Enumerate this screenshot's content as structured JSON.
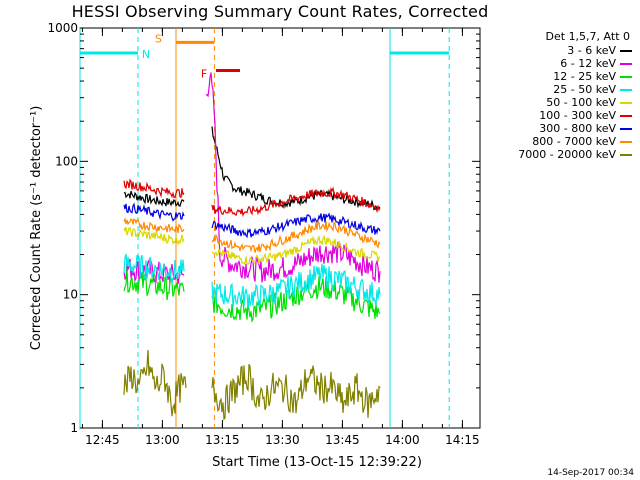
{
  "title": "HESSI Observing Summary Count Rates, Corrected",
  "footer": "14-Sep-2017 00:34",
  "chart_data": {
    "type": "line",
    "title": "HESSI Observing Summary Count Rates, Corrected",
    "xlabel": "Start Time (13-Oct-15 12:39:22)",
    "ylabel": "Corrected Count Rate (s⁻¹ detector⁻¹)",
    "x_unit": "minutes since 12:39:22",
    "xlim": [
      0,
      100
    ],
    "ylim": [
      1,
      1000
    ],
    "yscale": "log",
    "x_ticks": [
      {
        "label": "12:45",
        "t": 5.6
      },
      {
        "label": "13:00",
        "t": 20.6
      },
      {
        "label": "13:15",
        "t": 35.6
      },
      {
        "label": "13:30",
        "t": 50.6
      },
      {
        "label": "13:45",
        "t": 65.6
      },
      {
        "label": "14:00",
        "t": 80.6
      },
      {
        "label": "14:15",
        "t": 95.6
      }
    ],
    "y_ticks": [
      {
        "label": "1",
        "v": 1
      },
      {
        "label": "10",
        "v": 10
      },
      {
        "label": "100",
        "v": 100
      },
      {
        "label": "1000",
        "v": 1000
      }
    ],
    "legend": {
      "position": "top-right",
      "header": "Det 1,5,7, Att 0"
    },
    "series": [
      {
        "name": "3 - 6 keV",
        "color": "#000000",
        "segments": [
          {
            "x": [
              11.0,
              14.0,
              17.0,
              20.0,
              23.0,
              26.0
            ],
            "y": [
              58,
              55,
              52,
              50,
              49,
              50
            ]
          },
          {
            "x": [
              33.0,
              36.0,
              39.0,
              42.0,
              45.0,
              48.0,
              51.0,
              54.0,
              57.0,
              60.0,
              63.0,
              66.0,
              69.0,
              72.0,
              75.0
            ],
            "y": [
              170,
              75,
              62,
              58,
              54,
              50,
              49,
              50,
              54,
              56,
              55,
              52,
              50,
              48,
              45
            ]
          }
        ]
      },
      {
        "name": "6 - 12 keV",
        "color": "#e000e0",
        "segments": [
          {
            "x": [
              11.0,
              14.0,
              17.0,
              20.0,
              23.0,
              26.0
            ],
            "y": [
              16,
              15.5,
              15,
              14.5,
              14,
              14
            ]
          },
          {
            "x": [
              31.5,
              32.5,
              33.5,
              35.0,
              38.0,
              42.0,
              45.0,
              48.0,
              51.0,
              54.0,
              57.0,
              60.0,
              63.0,
              66.0,
              69.0,
              72.0,
              75.0
            ],
            "y": [
              300,
              450,
              250,
              20,
              17,
              16,
              15,
              15.5,
              16,
              17,
              19,
              21,
              21,
              20,
              18,
              16,
              15
            ]
          }
        ]
      },
      {
        "name": "12 - 25 keV",
        "color": "#00e000",
        "segments": [
          {
            "x": [
              11.0,
              14.0,
              17.0,
              20.0,
              23.0,
              26.0
            ],
            "y": [
              13,
              12.5,
              12,
              11.5,
              11,
              10.5
            ]
          },
          {
            "x": [
              33.0,
              36.0,
              39.0,
              42.0,
              45.0,
              48.0,
              51.0,
              54.0,
              57.0,
              60.0,
              63.0,
              66.0,
              69.0,
              72.0,
              75.0
            ],
            "y": [
              9,
              8,
              7.8,
              7.5,
              7.8,
              8.2,
              9,
              10,
              11,
              11.5,
              11,
              10,
              9,
              8,
              7.2
            ]
          }
        ]
      },
      {
        "name": "25 - 50 keV",
        "color": "#00e8e8",
        "segments": [
          {
            "x": [
              11.0,
              14.0,
              17.0,
              20.0,
              23.0,
              26.0
            ],
            "y": [
              17,
              16.5,
              16,
              15.5,
              15,
              15
            ]
          },
          {
            "x": [
              33.0,
              36.0,
              39.0,
              42.0,
              45.0,
              48.0,
              51.0,
              54.0,
              57.0,
              60.0,
              63.0,
              66.0,
              69.0,
              72.0,
              75.0
            ],
            "y": [
              10.5,
              10,
              9.8,
              9.6,
              9.8,
              10.2,
              11,
              12,
              13,
              14,
              13.5,
              12.5,
              11.5,
              10.5,
              10
            ]
          }
        ]
      },
      {
        "name": "50 - 100 keV",
        "color": "#d8d800",
        "segments": [
          {
            "x": [
              11.0,
              14.0,
              17.0,
              20.0,
              23.0,
              26.0
            ],
            "y": [
              30,
              29,
              28,
              27,
              26,
              26
            ]
          },
          {
            "x": [
              33.0,
              36.0,
              39.0,
              42.0,
              45.0,
              48.0,
              51.0,
              54.0,
              57.0,
              60.0,
              63.0,
              66.0,
              69.0,
              72.0,
              75.0
            ],
            "y": [
              22,
              20,
              19,
              18,
              18.5,
              19,
              20,
              22,
              24,
              26,
              25,
              23,
              21,
              20,
              19
            ]
          }
        ]
      },
      {
        "name": "100 - 300 keV",
        "color": "#e00000",
        "segments": [
          {
            "x": [
              11.0,
              14.0,
              17.0,
              20.0,
              23.0,
              26.0
            ],
            "y": [
              68,
              66,
              63,
              60,
              58,
              58
            ]
          },
          {
            "x": [
              33.0,
              36.0,
              39.0,
              42.0,
              45.0,
              48.0,
              51.0,
              54.0,
              57.0,
              60.0,
              63.0,
              66.0,
              69.0,
              72.0,
              75.0
            ],
            "y": [
              44,
              43,
              42,
              42,
              44,
              47,
              50,
              53,
              56,
              58,
              58,
              56,
              52,
              48,
              45
            ]
          }
        ]
      },
      {
        "name": "300 - 800 keV",
        "color": "#0000e0",
        "segments": [
          {
            "x": [
              11.0,
              14.0,
              17.0,
              20.0,
              23.0,
              26.0
            ],
            "y": [
              45,
              44,
              42,
              40,
              39,
              39
            ]
          },
          {
            "x": [
              33.0,
              36.0,
              39.0,
              42.0,
              45.0,
              48.0,
              51.0,
              54.0,
              57.0,
              60.0,
              63.0,
              66.0,
              69.0,
              72.0,
              75.0
            ],
            "y": [
              34,
              32,
              30,
              29,
              29.5,
              31,
              33,
              35,
              37,
              38,
              37,
              35,
              33,
              31,
              30
            ]
          }
        ]
      },
      {
        "name": "800 - 7000 keV",
        "color": "#ff8800",
        "segments": [
          {
            "x": [
              11.0,
              14.0,
              17.0,
              20.0,
              23.0,
              26.0
            ],
            "y": [
              36,
              34,
              33,
              32,
              31,
              31
            ]
          },
          {
            "x": [
              33.0,
              36.0,
              39.0,
              42.0,
              45.0,
              48.0,
              51.0,
              54.0,
              57.0,
              60.0,
              63.0,
              66.0,
              69.0,
              72.0,
              75.0
            ],
            "y": [
              27,
              25,
              23,
              22,
              22.5,
              24,
              26,
              28,
              31,
              33,
              33,
              31,
              28,
              26,
              24
            ]
          }
        ]
      },
      {
        "name": "7000 - 20000 keV",
        "color": "#808000",
        "segments": [
          {
            "x": [
              11.0,
              13.0,
              15.0,
              17.0,
              19.0,
              21.0,
              23.0,
              25.0,
              26.5
            ],
            "y": [
              2,
              2.5,
              2,
              3,
              2,
              2.5,
              1.5,
              2,
              2
            ]
          },
          {
            "x": [
              33.0,
              36.0,
              39.0,
              42.0,
              45.0,
              48.0,
              51.0,
              54.0,
              57.0,
              60.0,
              63.0,
              66.0,
              69.0,
              72.0,
              75.0
            ],
            "y": [
              2,
              1.5,
              2,
              2.5,
              1.5,
              2,
              2,
              1.5,
              2.5,
              2,
              2,
              1.5,
              2,
              1.5,
              2
            ]
          }
        ]
      }
    ],
    "annotations": [
      {
        "label": "N",
        "color": "#00e8e8",
        "type": "night",
        "level": 650,
        "bar_x": [
          0,
          14.5
        ],
        "solid_x": [
          0.0,
          77.5
        ],
        "dashed_x": [
          14.5,
          92.3
        ]
      },
      {
        "label": "S",
        "color": "#ff8800",
        "type": "saa",
        "level": 780,
        "bar_x": [
          24.0,
          33.6
        ],
        "solid_x": [
          24.0
        ],
        "dashed_x": [
          33.6
        ]
      },
      {
        "label": "F",
        "color": "#e00000",
        "type": "flare",
        "level": 480,
        "bar_x": [
          34.0,
          40.0
        ],
        "solid_x": [],
        "dashed_x": []
      },
      {
        "label": "",
        "color": "#00e8e8",
        "type": "night-end",
        "level": 650,
        "bar_x": [
          77.5,
          92.3
        ],
        "solid_x": [],
        "dashed_x": []
      }
    ]
  }
}
